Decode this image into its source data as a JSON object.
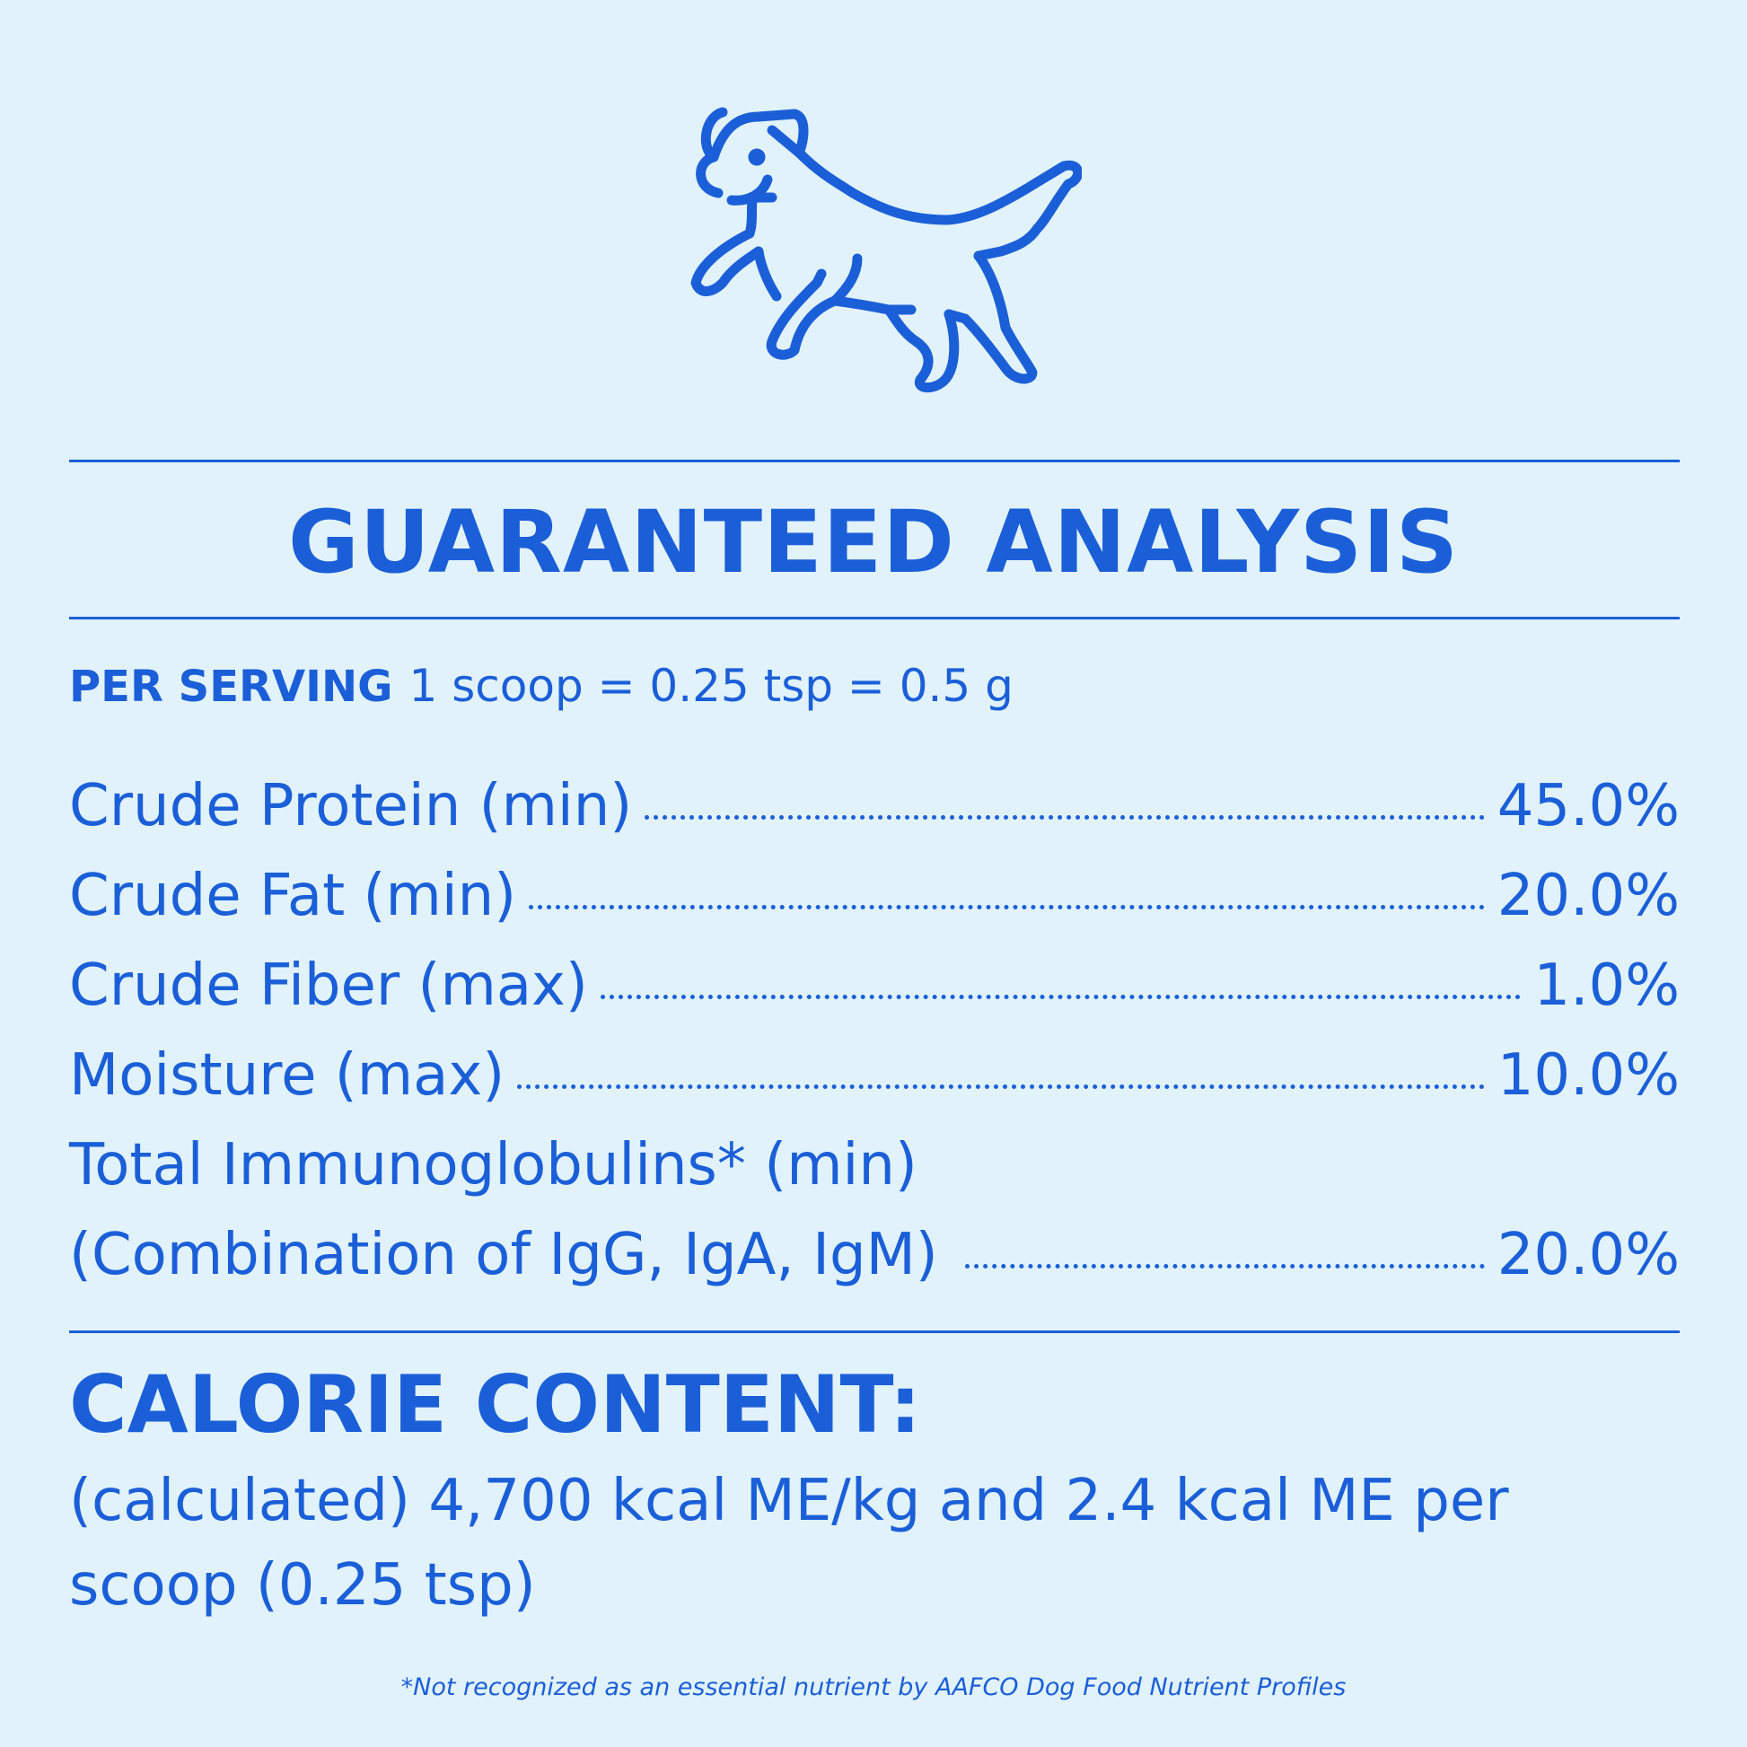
{
  "colors": {
    "background": "#e1f2fa",
    "accent": "#1b5fd8"
  },
  "illustration": {
    "icon": "running-dog-icon"
  },
  "header": {
    "title": "GUARANTEED ANALYSIS"
  },
  "serving": {
    "label": "PER SERVING",
    "value": "1 scoop = 0.25 tsp = 0.5 g"
  },
  "analysis": [
    {
      "name": "Crude Protein (min)",
      "value": "45.0%"
    },
    {
      "name": "Crude Fat (min)",
      "value": "20.0%"
    },
    {
      "name": "Crude Fiber (max)",
      "value": "1.0%"
    },
    {
      "name": "Moisture (max)",
      "value": "10.0%"
    },
    {
      "name_line1": "Total Immunoglobulins* (min)",
      "name": "(Combination of IgG, IgA, IgM)",
      "value": "20.0%"
    }
  ],
  "calorie": {
    "title": "CALORIE CONTENT:",
    "text": "(calculated) 4,700 kcal ME/kg and 2.4 kcal ME per scoop (0.25 tsp)"
  },
  "footnote": "*Not recognized as an essential nutrient by AAFCO Dog Food Nutrient Profiles"
}
